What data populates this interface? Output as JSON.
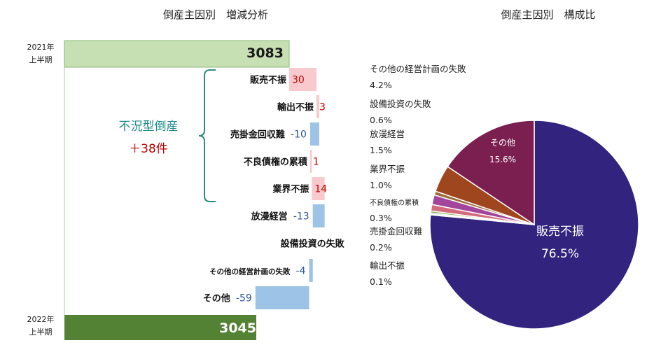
{
  "chart_data": [
    {
      "type": "bar",
      "title": "倒産主因別　増減分析",
      "start": {
        "label_line1": "2021年",
        "label_line2": "上半期",
        "value": 3083,
        "value_text": "3083"
      },
      "end": {
        "label_line1": "2022年",
        "label_line2": "上半期",
        "value": 3045,
        "value_text": "3045"
      },
      "categories": [
        "販売不振",
        "輸出不振",
        "売掛金回収難",
        "不良債権の累積",
        "業界不振",
        "放漫経営",
        "設備投資の失敗",
        "その他の経営計画の失敗",
        "その他"
      ],
      "values": [
        30,
        3,
        -10,
        1,
        14,
        -13,
        0,
        -4,
        -59
      ],
      "value_labels": [
        "30",
        "3",
        "-10",
        "1",
        "14",
        "-13",
        "",
        "-4",
        "-59"
      ],
      "group_annotation": {
        "line1": "不況型倒産",
        "line2": "＋38件"
      }
    },
    {
      "type": "pie",
      "title": "倒産主因別　構成比",
      "slices": [
        {
          "label": "販売不振",
          "value": 76.5,
          "value_text": "76.5%"
        },
        {
          "label": "輸出不振",
          "value": 0.1,
          "value_text": "0.1%"
        },
        {
          "label": "売掛金回収難",
          "value": 0.2,
          "value_text": "0.2%"
        },
        {
          "label": "不良債権の累積",
          "value": 0.3,
          "value_text": "0.3%"
        },
        {
          "label": "業界不振",
          "value": 1.0,
          "value_text": "1.0%"
        },
        {
          "label": "放漫経営",
          "value": 1.5,
          "value_text": "1.5%"
        },
        {
          "label": "設備投資の失敗",
          "value": 0.6,
          "value_text": "0.6%"
        },
        {
          "label": "その他の経営計画の失敗",
          "value": 4.2,
          "value_text": "4.2%"
        },
        {
          "label": "その他",
          "value": 15.6,
          "value_text": "15.6%"
        }
      ]
    }
  ],
  "colors": {
    "start_bar": "#c6e0b4",
    "start_bar_border": "#8ab873",
    "end_bar": "#548235",
    "increase_fill": "#f8c9cd",
    "increase_text": "#c00000",
    "decrease_fill": "#9dc3e6",
    "decrease_text": "#2f5597",
    "bracket": "#2e8b7a",
    "annotation_label": "#1f8a8a",
    "annotation_value": "#c00000",
    "pie": [
      "#32237f",
      "#2a2a6e",
      "#2e5f9e",
      "#7aa63e",
      "#d46a7e",
      "#a3459a",
      "#9b6e3c",
      "#a0461e",
      "#7a1f4f"
    ]
  }
}
